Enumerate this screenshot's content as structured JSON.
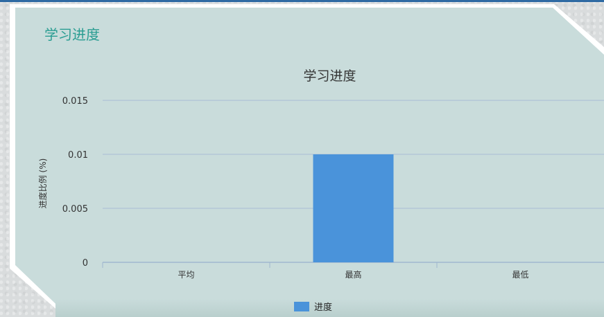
{
  "panel": {
    "title": "学习进度"
  },
  "chart_data": {
    "type": "bar",
    "title": "学习进度",
    "ylabel": "进度比例 (%)",
    "xlabel": "",
    "categories": [
      "平均",
      "最高",
      "最低"
    ],
    "series": [
      {
        "name": "进度",
        "values": [
          0,
          0.01,
          0
        ],
        "color": "#4a93da"
      }
    ],
    "ylim": [
      0,
      0.015
    ],
    "yticks": [
      0,
      0.005,
      0.01,
      0.015
    ],
    "ytick_labels": [
      "0",
      "0.005",
      "0.01",
      "0.015"
    ],
    "grid": true,
    "legend": "bottom-center"
  }
}
